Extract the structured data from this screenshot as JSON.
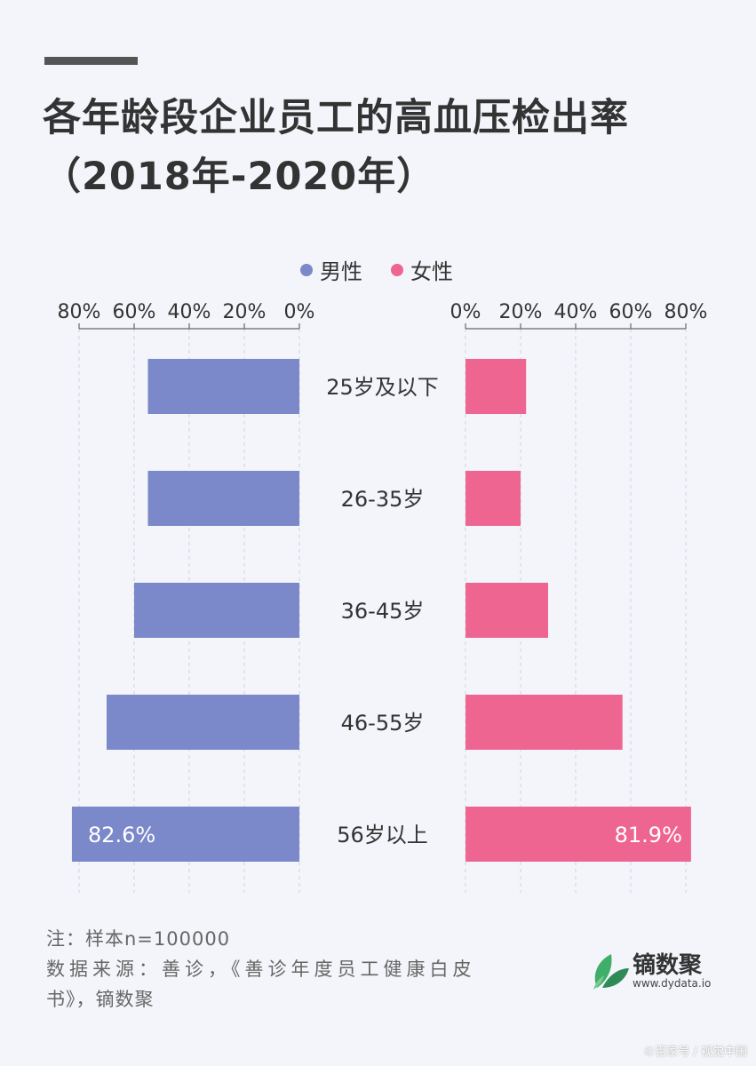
{
  "header": {
    "title_line1": "各年龄段企业员工的高血压检出率",
    "title_line2": "（2018年-2020年）"
  },
  "legend": {
    "male": "男性",
    "female": "女性"
  },
  "chart_data": {
    "type": "bar",
    "orientation": "horizontal-butterfly",
    "categories": [
      "25岁及以下",
      "26-35岁",
      "36-45岁",
      "46-55岁",
      "56岁以上"
    ],
    "series": [
      {
        "name": "男性",
        "color": "#7b88c9",
        "values": [
          55,
          55,
          60,
          70,
          82.6
        ]
      },
      {
        "name": "女性",
        "color": "#ef6591",
        "values": [
          22,
          20,
          30,
          57,
          81.9
        ]
      }
    ],
    "data_labels": {
      "男性": [
        "",
        "",
        "",
        "",
        "82.6%"
      ],
      "女性": [
        "",
        "",
        "",
        "",
        "81.9%"
      ]
    },
    "xlim": [
      0,
      80
    ],
    "ticks": [
      0,
      20,
      40,
      60,
      80
    ],
    "tick_labels": [
      "0%",
      "20%",
      "40%",
      "60%",
      "80%"
    ],
    "grid": true,
    "legend_position": "top-center"
  },
  "footer": {
    "note_line1": "注：样本n=100000",
    "note_line2": "数据来源：善诊，《善诊年度员工健康白皮",
    "note_line3": "书》，镝数聚",
    "logo_name": "镝数聚",
    "logo_url": "www.dydata.io",
    "watermark": "©百家号 / 视觉中国"
  }
}
